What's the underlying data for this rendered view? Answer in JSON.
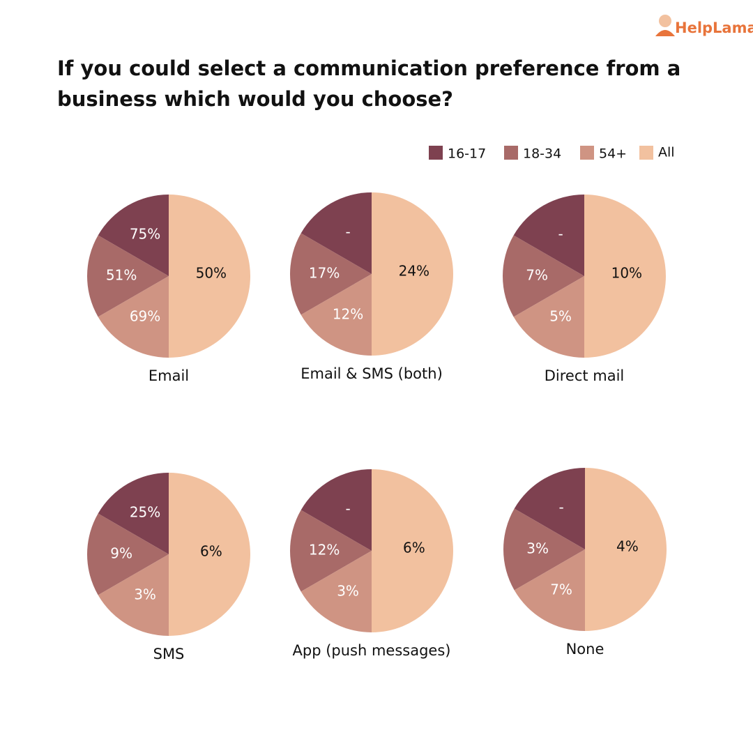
{
  "logo": "HelpLama",
  "title": "If you could select a communication preference from a business which would you choose?",
  "legend": {
    "names": [
      "16-17",
      "18-34",
      "54+",
      "All"
    ],
    "colors": [
      "#7e4150",
      "#a86a68",
      "#cf9483",
      "#f2c19f"
    ]
  },
  "chart_data": [
    {
      "type": "pie",
      "title": "Email",
      "values": [
        75,
        51,
        69,
        50
      ],
      "value_labels": [
        "75%",
        "51%",
        "69%",
        "50%"
      ]
    },
    {
      "type": "pie",
      "title": "Email & SMS (both)",
      "values": [
        null,
        17,
        12,
        24
      ],
      "value_labels": [
        "-",
        "17%",
        "12%",
        "24%"
      ]
    },
    {
      "type": "pie",
      "title": "Direct mail",
      "values": [
        null,
        7,
        5,
        10
      ],
      "value_labels": [
        "-",
        "7%",
        "5%",
        "10%"
      ]
    },
    {
      "type": "pie",
      "title": "SMS",
      "values": [
        25,
        9,
        3,
        6
      ],
      "value_labels": [
        "25%",
        "9%",
        "3%",
        "6%"
      ]
    },
    {
      "type": "pie",
      "title": "App (push messages)",
      "values": [
        null,
        12,
        3,
        6
      ],
      "value_labels": [
        "-",
        "12%",
        "3%",
        "6%"
      ]
    },
    {
      "type": "pie",
      "title": "None",
      "values": [
        null,
        3,
        7,
        4
      ],
      "value_labels": [
        "-",
        "3%",
        "7%",
        "4%"
      ]
    }
  ]
}
